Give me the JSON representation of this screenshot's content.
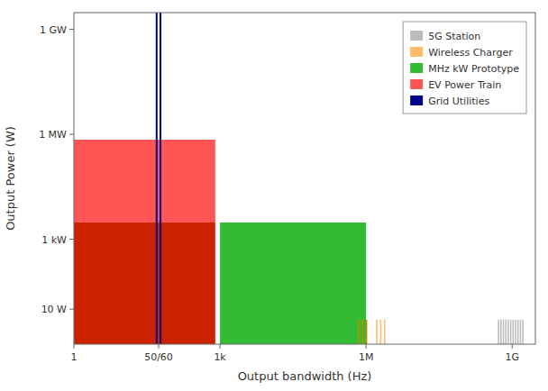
{
  "chart_data": {
    "type": "region",
    "xlabel": "Output bandwidth (Hz)",
    "ylabel": "Output Power (W)",
    "log": true,
    "xlim": [
      1,
      3000000000
    ],
    "ylim": [
      1,
      3000000000
    ],
    "xticks": [
      1,
      {
        "value": 55,
        "label": "50/60"
      },
      {
        "value": 1000,
        "label": "1k"
      },
      {
        "value": 1000000,
        "label": "1M"
      },
      {
        "value": 1000000000,
        "label": "1G"
      }
    ],
    "yticks": [
      {
        "value": 10,
        "label": "10 W"
      },
      {
        "value": 1000,
        "label": "1 kW"
      },
      {
        "value": 1000000,
        "label": "1 MW"
      },
      {
        "value": 1000000000,
        "label": "1 GW"
      }
    ],
    "legend": "upper right",
    "series": [
      {
        "name": "5G Station",
        "type": "segment",
        "color": "#BBBBBB",
        "x": [
          524807500,
          588843700,
          660693400,
          741310200,
          831763800,
          933254300,
          1047129000,
          1174898000,
          1318257000,
          1479108000,
          1659587000
        ],
        "low": [
          1,
          1,
          1,
          1,
          1,
          1,
          1,
          1,
          1,
          1,
          1
        ],
        "high": [
          5,
          5,
          5,
          5,
          5,
          5,
          5,
          5,
          5,
          5,
          5
        ]
      },
      {
        "type": "segment",
        "color": "#CC8800",
        "x": [
          707945.8,
          851138.0,
          1023293
        ],
        "low": [
          1,
          1,
          1
        ],
        "high": [
          5,
          5,
          5
        ]
      },
      {
        "name": "Wireless Charger",
        "type": "segment",
        "color": "#FFBB66",
        "x": [
          1659587,
          1995262,
          2398833
        ],
        "low": [
          1,
          1,
          1
        ],
        "high": [
          5,
          5,
          5
        ]
      },
      {
        "name": "MHz kW Prototype",
        "type": "rect",
        "color": "#33BB33",
        "xmin": 1000,
        "xmax": 1000000,
        "ymin": 1,
        "ymax": 3000
      },
      {
        "type": "rect",
        "color": "#CC2200",
        "xmin": 1,
        "xmax": 800,
        "ymin": 1,
        "ymax": 3000
      },
      {
        "name": "EV Power Train",
        "type": "rect",
        "color": "#FF5555",
        "xmin": 1,
        "xmax": 800,
        "ymin": 3000,
        "ymax": 700000
      },
      {
        "name": "Grid Utilities",
        "type": "vline",
        "color": "#00008B",
        "x": [
          50.00345,
          59.9791
        ]
      }
    ]
  }
}
